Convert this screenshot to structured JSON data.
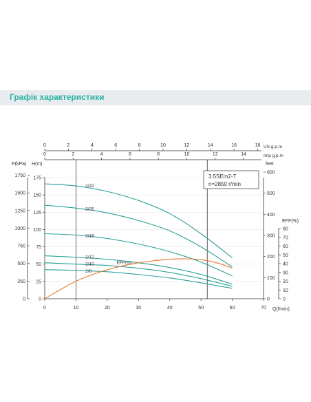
{
  "header": {
    "title": "Графік характеристики"
  },
  "chart_data": {
    "type": "line",
    "model_label": "3.5SEm2-T",
    "speed_label": "n=2850 r/min",
    "x_axis": {
      "label": "Q(l/min)",
      "range": [
        0,
        70
      ],
      "ticks": [
        0,
        10,
        20,
        30,
        40,
        50,
        60,
        70
      ],
      "vertical_markers": [
        10,
        52
      ]
    },
    "us_axis": {
      "label": "US  g.p.m",
      "ticks": [
        0,
        2,
        4,
        6,
        8,
        10,
        12,
        14,
        16,
        18
      ]
    },
    "imp_axis": {
      "label": "Imp  g.p.m",
      "ticks": [
        0,
        2,
        4,
        6,
        8,
        10,
        12,
        14
      ]
    },
    "p_axis": {
      "label": "P(kPa)",
      "ticks": [
        0,
        250,
        500,
        750,
        1000,
        1250,
        1500,
        1750
      ]
    },
    "h_axis": {
      "label": "H(m)",
      "range": [
        0,
        175
      ],
      "ticks": [
        0,
        25,
        50,
        75,
        100,
        125,
        150,
        175
      ]
    },
    "feet_axis": {
      "label": "feet",
      "ticks": [
        0,
        100,
        200,
        300,
        400,
        500,
        600
      ]
    },
    "eff_axis": {
      "label": "EFF(%)",
      "range": [
        0,
        80
      ],
      "ticks": [
        0,
        10,
        20,
        30,
        40,
        50,
        60,
        70,
        80
      ]
    },
    "series": [
      {
        "name": "2/32",
        "color": "#2aa198",
        "x": [
          0,
          10,
          20,
          30,
          40,
          50,
          60
        ],
        "y": [
          166,
          163,
          155,
          142,
          123,
          94,
          59
        ]
      },
      {
        "name": "2/26",
        "color": "#2aa198",
        "x": [
          0,
          10,
          20,
          30,
          40,
          50,
          60
        ],
        "y": [
          135,
          131,
          124,
          113,
          98,
          75,
          46
        ]
      },
      {
        "name": "2/18",
        "color": "#2aa198",
        "x": [
          0,
          10,
          20,
          30,
          40,
          50,
          60
        ],
        "y": [
          94,
          92,
          87,
          79,
          68,
          53,
          33
        ]
      },
      {
        "name": "2/12",
        "color": "#2aa198",
        "x": [
          0,
          10,
          20,
          30,
          40,
          50,
          60
        ],
        "y": [
          62,
          60,
          57,
          52,
          45,
          35,
          21
        ]
      },
      {
        "name": "2/10",
        "color": "#2aa198",
        "x": [
          0,
          10,
          20,
          30,
          40,
          50,
          60
        ],
        "y": [
          52,
          50,
          48,
          44,
          38,
          29,
          18
        ]
      },
      {
        "name": "2/8",
        "color": "#2aa198",
        "x": [
          0,
          10,
          20,
          30,
          40,
          50,
          60
        ],
        "y": [
          42,
          41,
          39,
          35,
          30,
          23,
          15
        ]
      },
      {
        "name": "EFF(%)",
        "color": "#e8772e",
        "axis": "eff",
        "x": [
          0,
          10,
          20,
          30,
          40,
          45,
          50,
          55,
          60
        ],
        "y": [
          0,
          20,
          33,
          41,
          45,
          45.5,
          44.5,
          41,
          35
        ]
      }
    ],
    "curve_labels": [
      {
        "series": "2/32",
        "x": 13,
        "y": 163
      },
      {
        "series": "2/26",
        "x": 13,
        "y": 130
      },
      {
        "series": "2/18",
        "x": 13,
        "y": 91
      },
      {
        "series": "2/12",
        "x": 13,
        "y": 60
      },
      {
        "series": "2/10",
        "x": 13,
        "y": 50
      },
      {
        "series": "2/8",
        "x": 13,
        "y": 40
      },
      {
        "series": "EFF(%)",
        "x": 23,
        "y": 41
      }
    ]
  }
}
